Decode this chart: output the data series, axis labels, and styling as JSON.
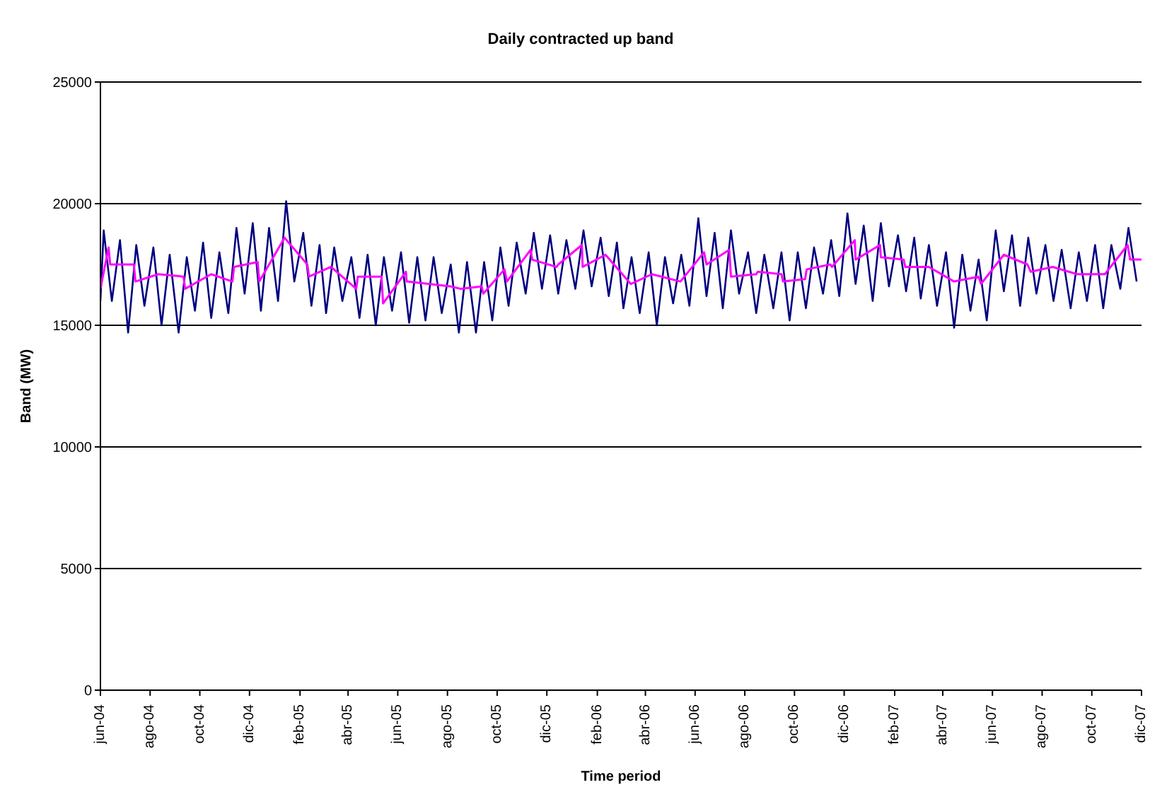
{
  "chart_data": {
    "type": "line",
    "title": "Daily contracted up band",
    "xlabel": "Time period",
    "ylabel": "Band (MW)",
    "xlim": [
      "2004-06-01",
      "2007-12-01"
    ],
    "xticks": [
      {
        "value": "2004-06-01",
        "label": "jun-04"
      },
      {
        "value": "2004-08-01",
        "label": "ago-04"
      },
      {
        "value": "2004-10-01",
        "label": "oct-04"
      },
      {
        "value": "2004-12-01",
        "label": "dic-04"
      },
      {
        "value": "2005-02-01",
        "label": "feb-05"
      },
      {
        "value": "2005-04-01",
        "label": "abr-05"
      },
      {
        "value": "2005-06-01",
        "label": "jun-05"
      },
      {
        "value": "2005-08-01",
        "label": "ago-05"
      },
      {
        "value": "2005-10-01",
        "label": "oct-05"
      },
      {
        "value": "2005-12-01",
        "label": "dic-05"
      },
      {
        "value": "2006-02-01",
        "label": "feb-06"
      },
      {
        "value": "2006-04-01",
        "label": "abr-06"
      },
      {
        "value": "2006-06-01",
        "label": "jun-06"
      },
      {
        "value": "2006-08-01",
        "label": "ago-06"
      },
      {
        "value": "2006-10-01",
        "label": "oct-06"
      },
      {
        "value": "2006-12-01",
        "label": "dic-06"
      },
      {
        "value": "2007-02-01",
        "label": "feb-07"
      },
      {
        "value": "2007-04-01",
        "label": "abr-07"
      },
      {
        "value": "2007-06-01",
        "label": "jun-07"
      },
      {
        "value": "2007-08-01",
        "label": "ago-07"
      },
      {
        "value": "2007-10-01",
        "label": "oct-07"
      },
      {
        "value": "2007-12-01",
        "label": "dic-07"
      }
    ],
    "ylim": [
      0,
      25000
    ],
    "yticks": [
      0,
      5000,
      10000,
      15000,
      20000,
      25000
    ],
    "grid": "y",
    "marker": "none",
    "line_style": "solid",
    "series": [
      {
        "color": "#000080",
        "x": [
          "2004-06-01",
          "2004-06-05",
          "2004-06-15",
          "2004-06-25",
          "2004-07-05",
          "2004-07-15",
          "2004-07-25",
          "2004-08-05",
          "2004-08-15",
          "2004-08-25",
          "2004-09-05",
          "2004-09-15",
          "2004-09-25",
          "2004-10-05",
          "2004-10-15",
          "2004-10-25",
          "2004-11-05",
          "2004-11-15",
          "2004-11-25",
          "2004-12-05",
          "2004-12-15",
          "2004-12-25",
          "2005-01-05",
          "2005-01-15",
          "2005-01-25",
          "2005-02-05",
          "2005-02-15",
          "2005-02-25",
          "2005-03-05",
          "2005-03-15",
          "2005-03-25",
          "2005-04-05",
          "2005-04-15",
          "2005-04-25",
          "2005-05-05",
          "2005-05-15",
          "2005-05-25",
          "2005-06-05",
          "2005-06-15",
          "2005-06-25",
          "2005-07-05",
          "2005-07-15",
          "2005-07-25",
          "2005-08-05",
          "2005-08-15",
          "2005-08-25",
          "2005-09-05",
          "2005-09-15",
          "2005-09-25",
          "2005-10-05",
          "2005-10-15",
          "2005-10-25",
          "2005-11-05",
          "2005-11-15",
          "2005-11-25",
          "2005-12-05",
          "2005-12-15",
          "2005-12-25",
          "2006-01-05",
          "2006-01-15",
          "2006-01-25",
          "2006-02-05",
          "2006-02-15",
          "2006-02-25",
          "2006-03-05",
          "2006-03-15",
          "2006-03-25",
          "2006-04-05",
          "2006-04-15",
          "2006-04-25",
          "2006-05-05",
          "2006-05-15",
          "2006-05-25",
          "2006-06-05",
          "2006-06-15",
          "2006-06-25",
          "2006-07-05",
          "2006-07-15",
          "2006-07-25",
          "2006-08-05",
          "2006-08-15",
          "2006-08-25",
          "2006-09-05",
          "2006-09-15",
          "2006-09-25",
          "2006-10-05",
          "2006-10-15",
          "2006-10-25",
          "2006-11-05",
          "2006-11-15",
          "2006-11-25",
          "2006-12-05",
          "2006-12-15",
          "2006-12-25",
          "2007-01-05",
          "2007-01-15",
          "2007-01-25",
          "2007-02-05",
          "2007-02-15",
          "2007-02-25",
          "2007-03-05",
          "2007-03-15",
          "2007-03-25",
          "2007-04-05",
          "2007-04-15",
          "2007-04-25",
          "2007-05-05",
          "2007-05-15",
          "2007-05-25",
          "2007-06-05",
          "2007-06-15",
          "2007-06-25",
          "2007-07-05",
          "2007-07-15",
          "2007-07-25",
          "2007-08-05",
          "2007-08-15",
          "2007-08-25",
          "2007-09-05",
          "2007-09-15",
          "2007-09-25",
          "2007-10-05",
          "2007-10-15",
          "2007-10-25",
          "2007-11-05",
          "2007-11-15",
          "2007-11-25"
        ],
        "values": [
          16000,
          18900,
          16000,
          18500,
          14700,
          18300,
          15800,
          18200,
          15000,
          17900,
          14700,
          17800,
          15600,
          18400,
          15300,
          18000,
          15500,
          19000,
          16300,
          19200,
          15600,
          19000,
          16000,
          20100,
          16800,
          18800,
          15800,
          18300,
          15500,
          18200,
          16000,
          17800,
          15300,
          17900,
          15000,
          17800,
          15600,
          18000,
          15100,
          17800,
          15200,
          17800,
          15500,
          17500,
          14700,
          17600,
          14700,
          17600,
          15200,
          18200,
          15800,
          18400,
          16300,
          18800,
          16500,
          18700,
          16300,
          18500,
          16500,
          18900,
          16600,
          18600,
          16200,
          18400,
          15700,
          17800,
          15500,
          18000,
          15000,
          17800,
          15900,
          17900,
          15800,
          19400,
          16200,
          18800,
          15700,
          18900,
          16300,
          18000,
          15500,
          17900,
          15700,
          18000,
          15200,
          18000,
          15700,
          18200,
          16300,
          18500,
          16200,
          19600,
          16700,
          19100,
          16000,
          19200,
          16600,
          18700,
          16400,
          18600,
          16100,
          18300,
          15800,
          18000,
          14900,
          17900,
          15600,
          17700,
          15200,
          18900,
          16400,
          18700,
          15800,
          18600,
          16300,
          18300,
          16000,
          18100,
          15700,
          18000,
          16000,
          18300,
          15700,
          18300,
          16500,
          19000,
          16800
        ]
      },
      {
        "color": "#ff00ff",
        "x": [
          "2004-06-01",
          "2004-06-11",
          "2004-06-13",
          "2004-07-12",
          "2004-07-14",
          "2004-08-11",
          "2004-09-11",
          "2004-09-13",
          "2004-10-15",
          "2004-11-10",
          "2004-11-12",
          "2004-12-11",
          "2004-12-13",
          "2005-01-13",
          "2005-02-10",
          "2005-02-12",
          "2005-03-11",
          "2005-04-11",
          "2005-04-13",
          "2005-05-12",
          "2005-05-14",
          "2005-06-11",
          "2005-06-12",
          "2005-08-05",
          "2005-08-17",
          "2005-09-12",
          "2005-09-14",
          "2005-10-10",
          "2005-10-13",
          "2005-11-11",
          "2005-11-13",
          "2005-12-13",
          "2005-12-15",
          "2006-01-13",
          "2006-01-14",
          "2006-02-11",
          "2006-03-14",
          "2006-04-09",
          "2006-05-14",
          "2006-06-12",
          "2006-06-15",
          "2006-07-13",
          "2006-07-15",
          "2006-08-15",
          "2006-08-17",
          "2006-09-15",
          "2006-09-17",
          "2006-10-14",
          "2006-10-16",
          "2006-11-14",
          "2006-11-16",
          "2006-12-14",
          "2006-12-15",
          "2007-01-14",
          "2007-01-15",
          "2007-02-12",
          "2007-02-14",
          "2007-03-15",
          "2007-04-15",
          "2007-05-15",
          "2007-05-18",
          "2007-06-15",
          "2007-07-14",
          "2007-07-18",
          "2007-08-14",
          "2007-09-13",
          "2007-10-17",
          "2007-11-14",
          "2007-11-17",
          "2007-12-01"
        ],
        "values": [
          16500,
          18200,
          17500,
          17500,
          16800,
          17100,
          17000,
          16500,
          17100,
          16800,
          17400,
          17600,
          16800,
          18600,
          17500,
          17000,
          17400,
          16500,
          17000,
          17000,
          15900,
          17200,
          16800,
          16600,
          16500,
          16600,
          16300,
          17300,
          16800,
          18100,
          17700,
          17400,
          17500,
          18300,
          17400,
          17900,
          16700,
          17100,
          16800,
          18000,
          17500,
          18100,
          17000,
          17100,
          17200,
          17100,
          16800,
          16900,
          17300,
          17500,
          17400,
          18500,
          17700,
          18300,
          17800,
          17700,
          17400,
          17400,
          16800,
          17000,
          16700,
          17900,
          17500,
          17200,
          17400,
          17100,
          17100,
          18300,
          17700,
          17700
        ]
      }
    ]
  }
}
